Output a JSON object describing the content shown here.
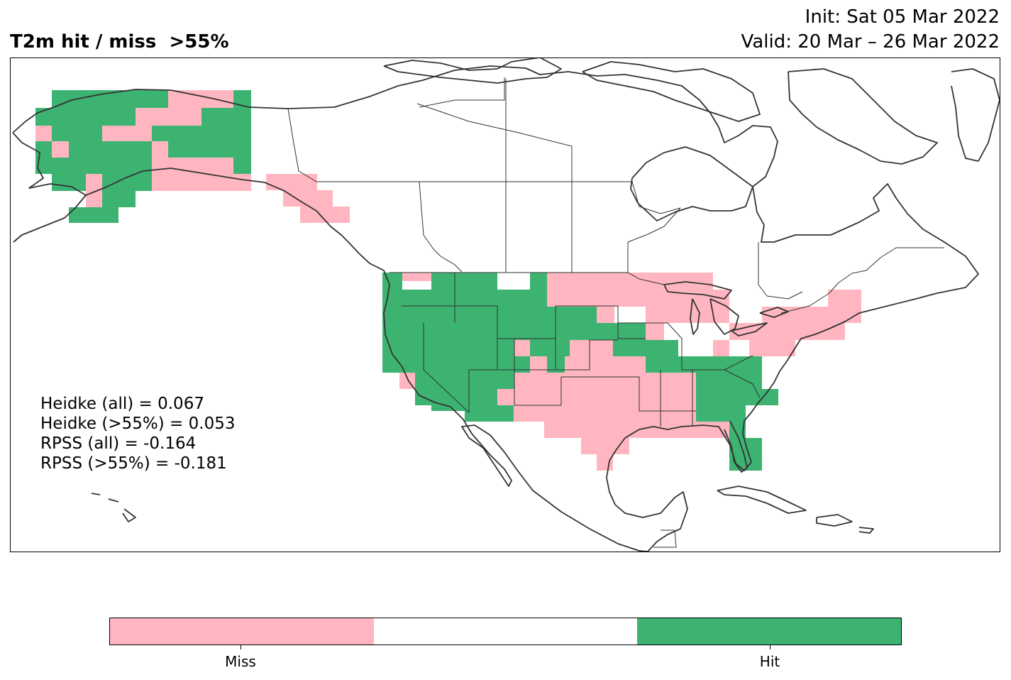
{
  "title": "T2m hit / miss  >55%",
  "init": "Init: Sat 05 Mar 2022",
  "valid": "Valid: 20 Mar – 26 Mar 2022",
  "colors": {
    "miss": "#ffb6c1",
    "neutral": "#ffffff",
    "hit": "#3cb371",
    "coast": "#333333",
    "border": "#333333"
  },
  "stats": [
    "Heidke (all) = 0.067",
    "Heidke (>55%) = 0.053",
    "RPSS (all) = -0.164",
    "RPSS (>55%) = -0.181"
  ],
  "legend": {
    "segments": [
      "miss",
      "neutral",
      "hit"
    ],
    "ticks": [
      {
        "label": "Miss"
      },
      {
        "label": "Hit"
      }
    ]
  }
}
